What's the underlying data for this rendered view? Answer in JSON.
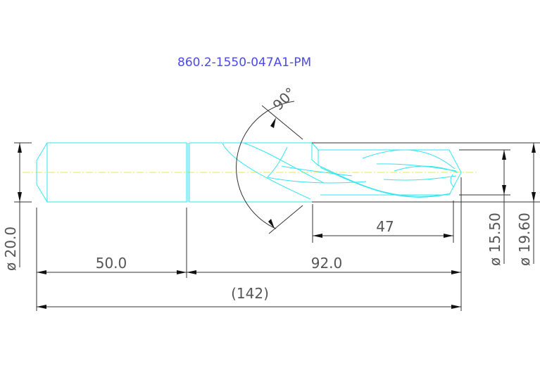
{
  "drawing": {
    "title": "860.2-1550-047A1-PM",
    "line_colors": {
      "part": "#33e6f0",
      "centerline": "#e8e84a",
      "dimension": "#333333",
      "title": "#4a4ae8"
    },
    "dimensions": {
      "shank_diameter": "ø 20.0",
      "shank_length": "50.0",
      "body_length": "92.0",
      "overall_length": "(142)",
      "flute_length": "47",
      "drill_diameter": "ø 15.50",
      "body_diameter": "ø 19.60",
      "point_angle": "90°"
    }
  }
}
